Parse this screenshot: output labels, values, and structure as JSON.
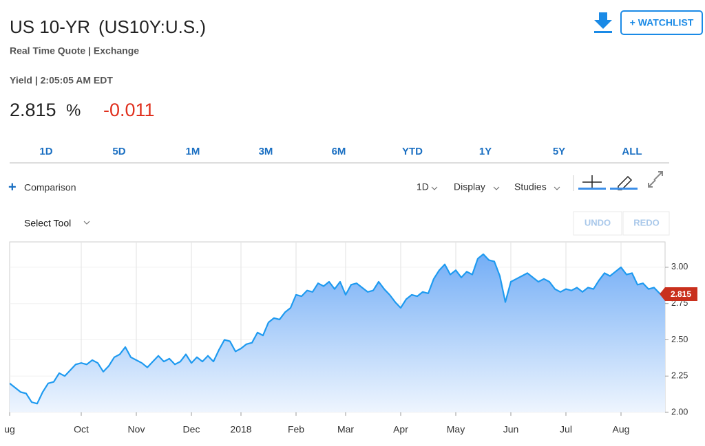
{
  "header": {
    "title": "US 10-YR",
    "symbol": "(US10Y:U.S.)",
    "subtitle": "Real Time Quote | Exchange",
    "yield_label": "Yield | 2:05:05 AM EDT",
    "price": "2.815",
    "price_unit": "%",
    "change": "-0.011",
    "watchlist": "+ WATCHLIST"
  },
  "ranges": [
    "1D",
    "5D",
    "1M",
    "3M",
    "6M",
    "YTD",
    "1Y",
    "5Y",
    "ALL"
  ],
  "toolbar": {
    "comparison": "Comparison",
    "interval": "1D",
    "display": "Display",
    "studies": "Studies",
    "select_tool": "Select Tool",
    "undo": "UNDO",
    "redo": "REDO"
  },
  "chart_data": {
    "type": "area",
    "color": "#1e9af0",
    "grid": true,
    "ylim": [
      2,
      3.175
    ],
    "yticks": [
      {
        "value": 2,
        "label": "2.00"
      },
      {
        "value": 2.25,
        "label": "2.25"
      },
      {
        "value": 2.5,
        "label": "2.50"
      },
      {
        "value": 2.75,
        "label": "2.75"
      },
      {
        "value": 3,
        "label": "3.00"
      }
    ],
    "categories": [
      "ug",
      null,
      null,
      null,
      null,
      null,
      null,
      null,
      null,
      null,
      null,
      null,
      null,
      "Oct",
      null,
      null,
      null,
      null,
      null,
      null,
      null,
      null,
      null,
      "Nov",
      null,
      null,
      null,
      null,
      null,
      null,
      null,
      null,
      null,
      "Dec",
      null,
      null,
      null,
      null,
      null,
      null,
      null,
      null,
      "2018",
      null,
      null,
      null,
      null,
      null,
      null,
      null,
      null,
      null,
      "Feb",
      null,
      null,
      null,
      null,
      null,
      null,
      null,
      null,
      "Mar",
      null,
      null,
      null,
      null,
      null,
      null,
      null,
      null,
      null,
      "Apr",
      null,
      null,
      null,
      null,
      null,
      null,
      null,
      null,
      null,
      "May",
      null,
      null,
      null,
      null,
      null,
      null,
      null,
      null,
      null,
      "Jun",
      null,
      null,
      null,
      null,
      null,
      null,
      null,
      null,
      null,
      "Jul",
      null,
      null,
      null,
      null,
      null,
      null,
      null,
      null,
      null,
      "Aug",
      null,
      null,
      null,
      null,
      null,
      null,
      null,
      null
    ],
    "values": [
      2.2,
      2.17,
      2.14,
      2.13,
      2.07,
      2.06,
      2.14,
      2.2,
      2.21,
      2.27,
      2.25,
      2.29,
      2.33,
      2.34,
      2.33,
      2.36,
      2.34,
      2.28,
      2.32,
      2.38,
      2.4,
      2.45,
      2.38,
      2.36,
      2.34,
      2.31,
      2.35,
      2.39,
      2.35,
      2.37,
      2.33,
      2.35,
      2.4,
      2.34,
      2.38,
      2.35,
      2.39,
      2.35,
      2.43,
      2.5,
      2.49,
      2.42,
      2.44,
      2.47,
      2.48,
      2.55,
      2.53,
      2.62,
      2.65,
      2.64,
      2.69,
      2.72,
      2.81,
      2.8,
      2.84,
      2.83,
      2.89,
      2.87,
      2.9,
      2.85,
      2.9,
      2.81,
      2.88,
      2.89,
      2.86,
      2.83,
      2.84,
      2.9,
      2.85,
      2.81,
      2.76,
      2.72,
      2.78,
      2.81,
      2.8,
      2.83,
      2.82,
      2.92,
      2.98,
      3.02,
      2.95,
      2.98,
      2.93,
      2.97,
      2.95,
      3.06,
      3.09,
      3.05,
      3.04,
      2.94,
      2.76,
      2.9,
      2.92,
      2.94,
      2.96,
      2.93,
      2.9,
      2.92,
      2.9,
      2.85,
      2.83,
      2.85,
      2.84,
      2.86,
      2.83,
      2.86,
      2.85,
      2.91,
      2.96,
      2.94,
      2.97,
      3.0,
      2.95,
      2.96,
      2.88,
      2.89,
      2.85,
      2.86,
      2.82,
      2.815
    ]
  }
}
